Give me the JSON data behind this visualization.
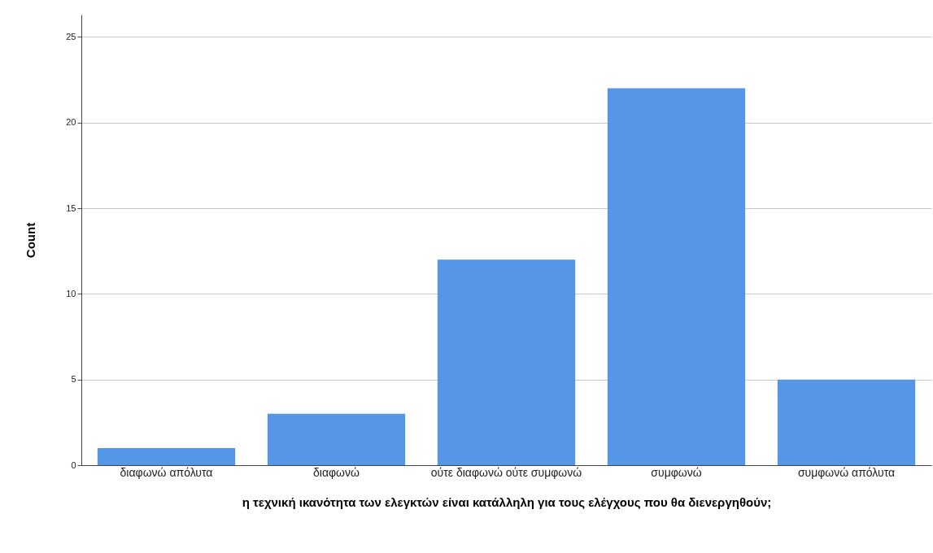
{
  "chart_data": {
    "type": "bar",
    "xlabel": "η τεχνική ικανότητα των ελεγκτών είναι κατάλληλη για τους ελέγχους που θα διενεργηθούν;",
    "ylabel": "Count",
    "categories": [
      "διαφωνώ απόλυτα",
      "διαφωνώ",
      "ούτε διαφωνώ ούτε συμφωνώ",
      "συμφωνώ",
      "συμφωνώ απόλυτα"
    ],
    "values": [
      1,
      3,
      12,
      22,
      5
    ],
    "color": "#5596e6",
    "ylim": [
      0,
      26.3
    ],
    "yticks": [
      0,
      5,
      10,
      15,
      20,
      25
    ],
    "grid": "y"
  }
}
